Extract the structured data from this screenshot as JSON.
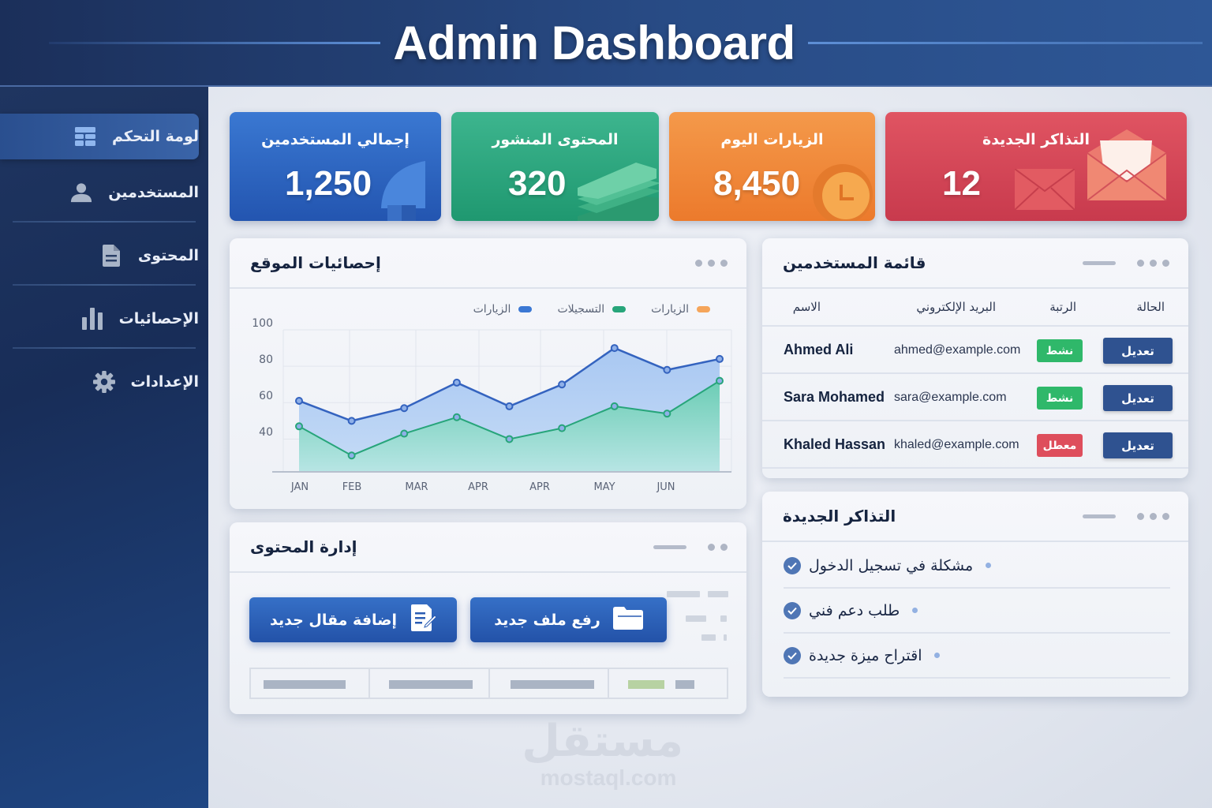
{
  "header": {
    "title": "Admin Dashboard"
  },
  "sidebar": {
    "items": [
      {
        "label": "لومة التحكم",
        "icon": "dashboard-icon",
        "active": true
      },
      {
        "label": "المستخدمين",
        "icon": "user-icon",
        "active": false
      },
      {
        "label": "المحتوى",
        "icon": "document-icon",
        "active": false
      },
      {
        "label": "الإحصائيات",
        "icon": "bar-chart-icon",
        "active": false
      },
      {
        "label": "الإعدادات",
        "icon": "gear-icon",
        "active": false
      }
    ]
  },
  "stats": [
    {
      "label": "إجمالي المستخدمين",
      "value": "1,250",
      "color": "#2f63c0",
      "icon": "user-silhouette-icon"
    },
    {
      "label": "المحتوى المنشور",
      "value": "320",
      "color": "#26a57c",
      "icon": "stacked-pages-icon"
    },
    {
      "label": "الزيارات اليوم",
      "value": "8,450",
      "color": "#f08a3a",
      "icon": "clock-icon"
    },
    {
      "label": "التذاكر الجديدة",
      "value": "12",
      "color": "#d64858",
      "icon": "envelope-icon"
    }
  ],
  "site_stats": {
    "title": "إحصائيات الموقع",
    "legend": [
      {
        "label": "الزيارات",
        "color": "#3b78d4"
      },
      {
        "label": "التسجيلات",
        "color": "#27a57a"
      },
      {
        "label": "الزيارات",
        "color": "#f5a55a"
      }
    ]
  },
  "chart_data": {
    "type": "area",
    "title": "إحصائيات الموقع",
    "categories": [
      "JAN",
      "FEB",
      "MAR",
      "APR",
      "APR",
      "MAY",
      "JUN"
    ],
    "x_points": 9,
    "series": [
      {
        "name": "الزيارات",
        "color": "#3463bf",
        "values": [
          61,
          50,
          57,
          71,
          58,
          70,
          90,
          78,
          84
        ]
      },
      {
        "name": "التسجيلات",
        "color": "#27a57a",
        "values": [
          47,
          31,
          43,
          52,
          40,
          46,
          58,
          54,
          72
        ]
      }
    ],
    "legend_entries": [
      "الزيارات",
      "التسجيلات",
      "الزيارات"
    ],
    "y_ticks": [
      40,
      60,
      80,
      100
    ],
    "ylim": [
      22,
      100
    ],
    "grid": true,
    "legend_position": "top-right",
    "xlabel": "",
    "ylabel": ""
  },
  "content_mgmt": {
    "title": "إدارة المحتوى",
    "add_article_label": "إضافة مقال جديد",
    "upload_file_label": "رفع ملف جديد"
  },
  "users": {
    "title": "قائمة المستخدمين",
    "columns": {
      "name": "الاسم",
      "email": "البريد الإلكتروني",
      "role": "الرتبة",
      "status": "الحالة"
    },
    "rows": [
      {
        "name": "Ahmed Ali",
        "email": "ahmed@example.com",
        "badge": "نشط",
        "badge_color": "#2fb86a",
        "action": "تعديل"
      },
      {
        "name": "Sara Mohamed",
        "email": "sara@example.com",
        "badge": "نشط",
        "badge_color": "#2fb86a",
        "action": "تعديل"
      },
      {
        "name": "Khaled Hassan",
        "email": "khaled@example.com",
        "badge": "معطل",
        "badge_color": "#de4e5c",
        "action": "تعديل"
      }
    ]
  },
  "tickets": {
    "title": "التذاكر الجديدة",
    "items": [
      {
        "text": "مشكلة في تسجيل الدخول"
      },
      {
        "text": "طلب دعم فني"
      },
      {
        "text": "اقتراح ميزة جديدة"
      }
    ]
  },
  "watermark": {
    "ar": "مستقل",
    "en": "mostaql.com"
  }
}
